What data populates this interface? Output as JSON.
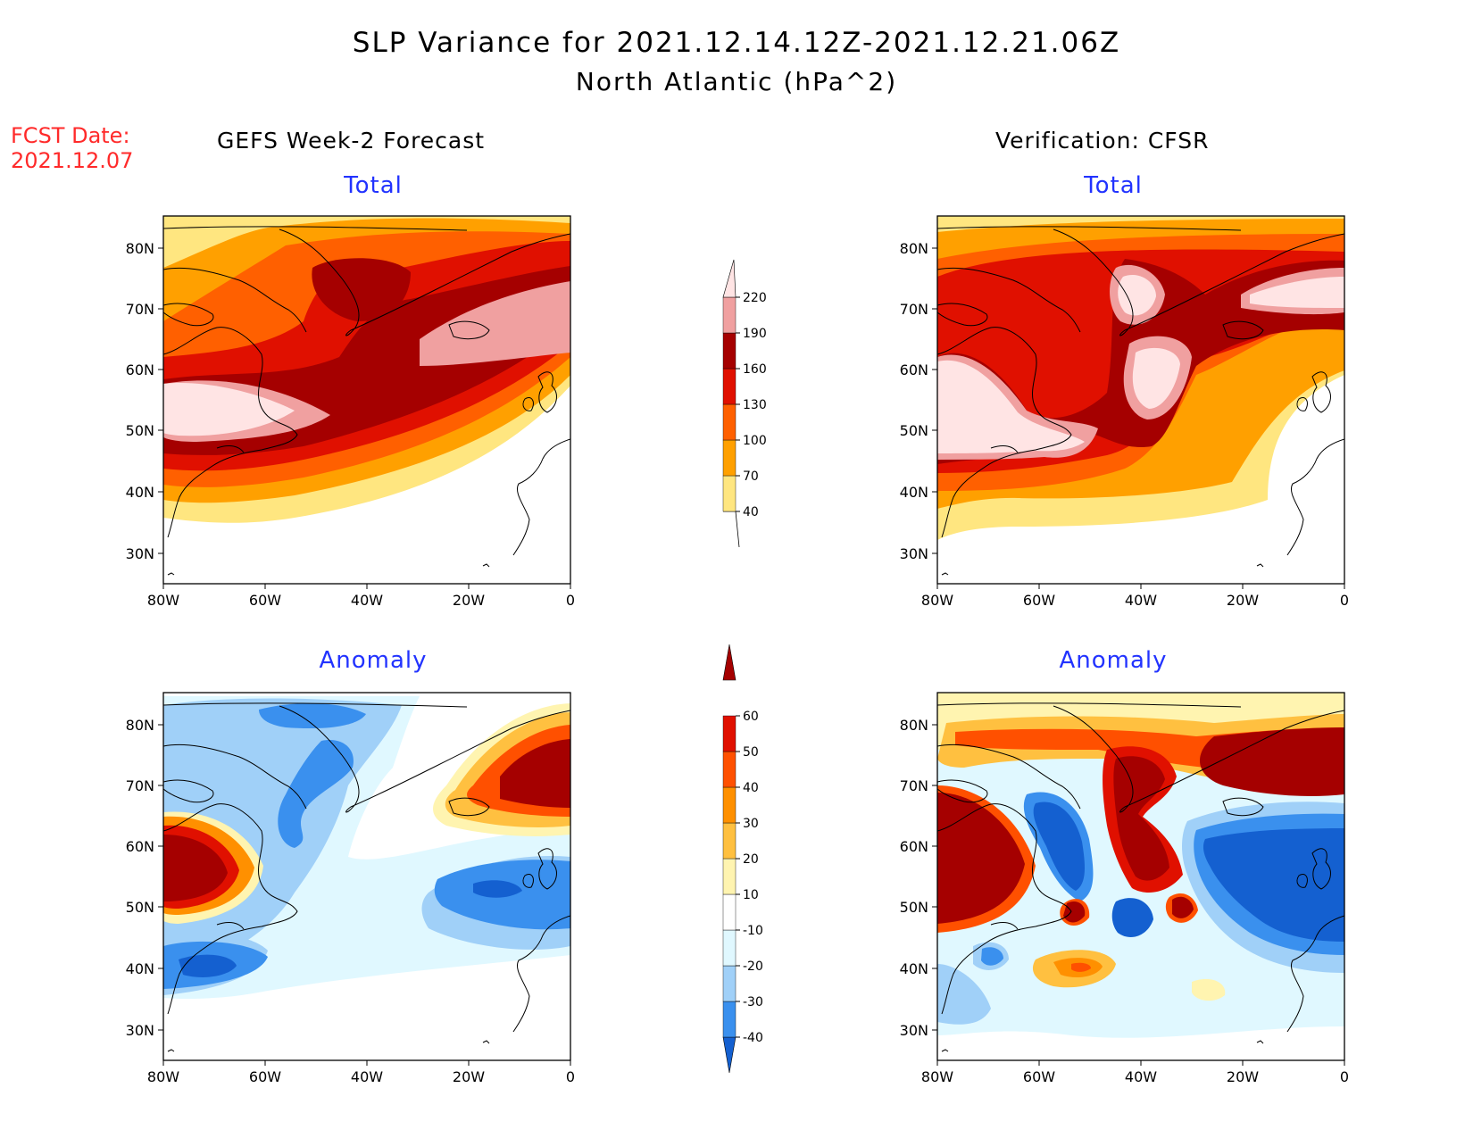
{
  "header": {
    "title_line1": "SLP Variance for 2021.12.14.12Z-2021.12.21.06Z",
    "title_line2": "North Atlantic (hPa^2)",
    "fcst_label": "FCST Date:",
    "fcst_date": "2021.12.07"
  },
  "columns": {
    "left": "GEFS Week-2 Forecast",
    "right": "Verification: CFSR"
  },
  "panels": {
    "total_label": "Total",
    "anomaly_label": "Anomaly"
  },
  "axes": {
    "lat_labels": [
      "80N",
      "70N",
      "60N",
      "50N",
      "40N",
      "30N"
    ],
    "lon_labels": [
      "80W",
      "60W",
      "40W",
      "20W",
      "0"
    ]
  },
  "colorbars": {
    "total": {
      "levels": [
        "40",
        "70",
        "100",
        "130",
        "160",
        "190",
        "220"
      ],
      "colors": [
        "#ffe680",
        "#ffa000",
        "#ff6000",
        "#e01000",
        "#a50000",
        "#f0a0a0",
        "#ffe4e4"
      ]
    },
    "anomaly": {
      "levels": [
        "-40",
        "-30",
        "-20",
        "-10",
        "10",
        "20",
        "30",
        "40",
        "50",
        "60"
      ],
      "colors": [
        "#1460d0",
        "#3a90ee",
        "#a0d0f8",
        "#e0f8ff",
        "#ffffff",
        "#fff4b0",
        "#ffc040",
        "#ff9000",
        "#ff5000",
        "#e01000",
        "#a50000"
      ]
    }
  }
}
